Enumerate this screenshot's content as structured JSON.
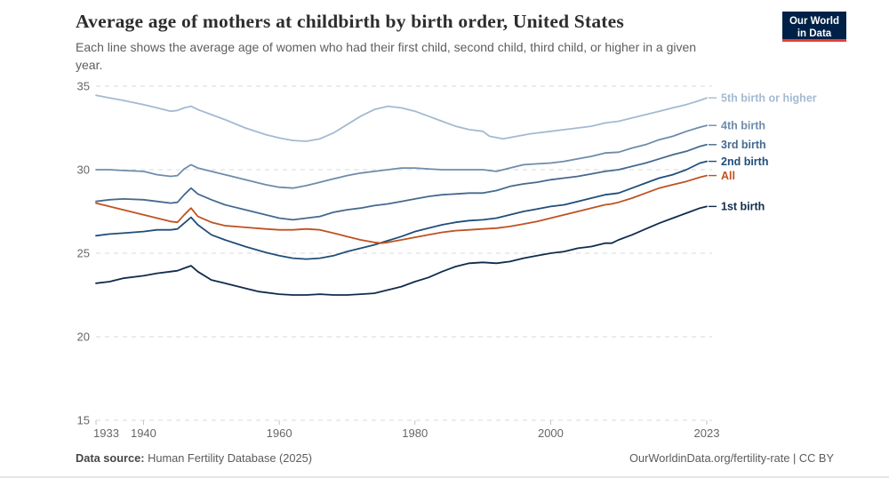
{
  "header": {
    "logo": {
      "line1": "Our World",
      "line2": "in Data",
      "bg": "#002147",
      "stripe": "#E63E36"
    }
  },
  "footer": {
    "datasource_label": "Data source:",
    "datasource": "Human Fertility Database (2025)",
    "credit": "OurWorldinData.org/fertility-rate | CC BY"
  },
  "chart_data": {
    "type": "line",
    "title": "Average age of mothers at childbirth by birth order, United States",
    "subtitle": "Each line shows the average age of women who had their first child, second child, third child, or higher in a given year.",
    "xlabel": "",
    "ylabel": "",
    "xlim": [
      1933,
      2023
    ],
    "ylim": [
      15,
      35
    ],
    "x_ticks": [
      "1933",
      "1940",
      "1960",
      "1980",
      "2000",
      "2023"
    ],
    "y_ticks": [
      15,
      20,
      25,
      30,
      35
    ],
    "grid": "horizontal-dashed",
    "legend_position": "line-end-labels-right",
    "series": [
      {
        "name": "5th birth or higher",
        "color": "#a4bad1",
        "points": [
          [
            1933,
            34.45
          ],
          [
            1935,
            34.3
          ],
          [
            1937,
            34.15
          ],
          [
            1940,
            33.9
          ],
          [
            1942,
            33.7
          ],
          [
            1944,
            33.5
          ],
          [
            1945,
            33.55
          ],
          [
            1946,
            33.7
          ],
          [
            1947,
            33.8
          ],
          [
            1948,
            33.6
          ],
          [
            1950,
            33.3
          ],
          [
            1952,
            33.0
          ],
          [
            1955,
            32.5
          ],
          [
            1958,
            32.1
          ],
          [
            1960,
            31.9
          ],
          [
            1962,
            31.75
          ],
          [
            1964,
            31.7
          ],
          [
            1966,
            31.85
          ],
          [
            1968,
            32.2
          ],
          [
            1970,
            32.7
          ],
          [
            1972,
            33.2
          ],
          [
            1974,
            33.6
          ],
          [
            1976,
            33.8
          ],
          [
            1978,
            33.7
          ],
          [
            1980,
            33.5
          ],
          [
            1982,
            33.2
          ],
          [
            1984,
            32.9
          ],
          [
            1986,
            32.6
          ],
          [
            1988,
            32.4
          ],
          [
            1990,
            32.3
          ],
          [
            1991,
            32.0
          ],
          [
            1993,
            31.85
          ],
          [
            1995,
            32.0
          ],
          [
            1997,
            32.15
          ],
          [
            2000,
            32.3
          ],
          [
            2002,
            32.4
          ],
          [
            2004,
            32.5
          ],
          [
            2006,
            32.6
          ],
          [
            2008,
            32.8
          ],
          [
            2010,
            32.9
          ],
          [
            2012,
            33.1
          ],
          [
            2014,
            33.3
          ],
          [
            2016,
            33.5
          ],
          [
            2018,
            33.7
          ],
          [
            2020,
            33.9
          ],
          [
            2022,
            34.15
          ],
          [
            2023,
            34.3
          ]
        ]
      },
      {
        "name": "4th birth",
        "color": "#6d8cab",
        "points": [
          [
            1933,
            30.0
          ],
          [
            1935,
            30.0
          ],
          [
            1937,
            29.95
          ],
          [
            1940,
            29.9
          ],
          [
            1942,
            29.7
          ],
          [
            1944,
            29.6
          ],
          [
            1945,
            29.65
          ],
          [
            1946,
            30.05
          ],
          [
            1947,
            30.3
          ],
          [
            1948,
            30.1
          ],
          [
            1950,
            29.9
          ],
          [
            1952,
            29.7
          ],
          [
            1955,
            29.4
          ],
          [
            1958,
            29.1
          ],
          [
            1960,
            28.95
          ],
          [
            1962,
            28.9
          ],
          [
            1964,
            29.05
          ],
          [
            1966,
            29.25
          ],
          [
            1968,
            29.45
          ],
          [
            1970,
            29.65
          ],
          [
            1972,
            29.8
          ],
          [
            1974,
            29.9
          ],
          [
            1976,
            30.0
          ],
          [
            1978,
            30.1
          ],
          [
            1980,
            30.1
          ],
          [
            1982,
            30.05
          ],
          [
            1984,
            30.0
          ],
          [
            1986,
            30.0
          ],
          [
            1988,
            30.0
          ],
          [
            1990,
            30.0
          ],
          [
            1992,
            29.9
          ],
          [
            1994,
            30.1
          ],
          [
            1996,
            30.3
          ],
          [
            1998,
            30.35
          ],
          [
            2000,
            30.4
          ],
          [
            2002,
            30.5
          ],
          [
            2004,
            30.65
          ],
          [
            2006,
            30.8
          ],
          [
            2008,
            31.0
          ],
          [
            2010,
            31.05
          ],
          [
            2012,
            31.3
          ],
          [
            2014,
            31.5
          ],
          [
            2016,
            31.8
          ],
          [
            2018,
            32.0
          ],
          [
            2020,
            32.3
          ],
          [
            2022,
            32.55
          ],
          [
            2023,
            32.65
          ]
        ]
      },
      {
        "name": "3rd birth",
        "color": "#45698f",
        "points": [
          [
            1933,
            28.1
          ],
          [
            1935,
            28.2
          ],
          [
            1937,
            28.25
          ],
          [
            1940,
            28.2
          ],
          [
            1942,
            28.1
          ],
          [
            1944,
            28.0
          ],
          [
            1945,
            28.05
          ],
          [
            1946,
            28.5
          ],
          [
            1947,
            28.9
          ],
          [
            1948,
            28.55
          ],
          [
            1950,
            28.2
          ],
          [
            1952,
            27.9
          ],
          [
            1955,
            27.6
          ],
          [
            1958,
            27.3
          ],
          [
            1960,
            27.1
          ],
          [
            1962,
            27.0
          ],
          [
            1964,
            27.1
          ],
          [
            1966,
            27.2
          ],
          [
            1968,
            27.45
          ],
          [
            1970,
            27.6
          ],
          [
            1972,
            27.7
          ],
          [
            1974,
            27.85
          ],
          [
            1976,
            27.95
          ],
          [
            1978,
            28.1
          ],
          [
            1980,
            28.25
          ],
          [
            1982,
            28.4
          ],
          [
            1984,
            28.5
          ],
          [
            1986,
            28.55
          ],
          [
            1988,
            28.6
          ],
          [
            1990,
            28.6
          ],
          [
            1992,
            28.75
          ],
          [
            1994,
            29.0
          ],
          [
            1996,
            29.15
          ],
          [
            1998,
            29.25
          ],
          [
            2000,
            29.4
          ],
          [
            2002,
            29.5
          ],
          [
            2004,
            29.6
          ],
          [
            2006,
            29.75
          ],
          [
            2008,
            29.9
          ],
          [
            2010,
            30.0
          ],
          [
            2012,
            30.2
          ],
          [
            2014,
            30.4
          ],
          [
            2016,
            30.65
          ],
          [
            2018,
            30.9
          ],
          [
            2020,
            31.1
          ],
          [
            2022,
            31.4
          ],
          [
            2023,
            31.5
          ]
        ]
      },
      {
        "name": "2nd birth",
        "color": "#1f4e79",
        "points": [
          [
            1933,
            26.05
          ],
          [
            1935,
            26.15
          ],
          [
            1937,
            26.2
          ],
          [
            1940,
            26.3
          ],
          [
            1942,
            26.4
          ],
          [
            1944,
            26.4
          ],
          [
            1945,
            26.45
          ],
          [
            1946,
            26.8
          ],
          [
            1947,
            27.15
          ],
          [
            1948,
            26.7
          ],
          [
            1950,
            26.1
          ],
          [
            1952,
            25.8
          ],
          [
            1955,
            25.4
          ],
          [
            1958,
            25.05
          ],
          [
            1960,
            24.85
          ],
          [
            1962,
            24.7
          ],
          [
            1964,
            24.65
          ],
          [
            1966,
            24.7
          ],
          [
            1968,
            24.85
          ],
          [
            1970,
            25.1
          ],
          [
            1972,
            25.3
          ],
          [
            1974,
            25.5
          ],
          [
            1976,
            25.75
          ],
          [
            1978,
            26.0
          ],
          [
            1980,
            26.3
          ],
          [
            1982,
            26.5
          ],
          [
            1984,
            26.7
          ],
          [
            1986,
            26.85
          ],
          [
            1988,
            26.95
          ],
          [
            1990,
            27.0
          ],
          [
            1992,
            27.1
          ],
          [
            1994,
            27.3
          ],
          [
            1996,
            27.5
          ],
          [
            1998,
            27.65
          ],
          [
            2000,
            27.8
          ],
          [
            2002,
            27.9
          ],
          [
            2004,
            28.1
          ],
          [
            2006,
            28.3
          ],
          [
            2008,
            28.5
          ],
          [
            2009,
            28.55
          ],
          [
            2010,
            28.6
          ],
          [
            2012,
            28.9
          ],
          [
            2014,
            29.2
          ],
          [
            2016,
            29.5
          ],
          [
            2018,
            29.7
          ],
          [
            2020,
            30.0
          ],
          [
            2022,
            30.4
          ],
          [
            2023,
            30.5
          ]
        ]
      },
      {
        "name": "All",
        "color": "#bf5221",
        "points": [
          [
            1933,
            28.0
          ],
          [
            1935,
            27.8
          ],
          [
            1937,
            27.6
          ],
          [
            1940,
            27.3
          ],
          [
            1942,
            27.1
          ],
          [
            1944,
            26.9
          ],
          [
            1945,
            26.85
          ],
          [
            1946,
            27.3
          ],
          [
            1947,
            27.7
          ],
          [
            1948,
            27.2
          ],
          [
            1950,
            26.85
          ],
          [
            1952,
            26.65
          ],
          [
            1955,
            26.55
          ],
          [
            1958,
            26.45
          ],
          [
            1960,
            26.4
          ],
          [
            1962,
            26.4
          ],
          [
            1964,
            26.45
          ],
          [
            1966,
            26.4
          ],
          [
            1968,
            26.2
          ],
          [
            1970,
            26.0
          ],
          [
            1972,
            25.8
          ],
          [
            1974,
            25.65
          ],
          [
            1975,
            25.6
          ],
          [
            1976,
            25.65
          ],
          [
            1978,
            25.8
          ],
          [
            1980,
            25.95
          ],
          [
            1982,
            26.1
          ],
          [
            1984,
            26.25
          ],
          [
            1986,
            26.35
          ],
          [
            1988,
            26.4
          ],
          [
            1990,
            26.45
          ],
          [
            1992,
            26.5
          ],
          [
            1994,
            26.6
          ],
          [
            1996,
            26.75
          ],
          [
            1998,
            26.9
          ],
          [
            2000,
            27.1
          ],
          [
            2002,
            27.3
          ],
          [
            2004,
            27.5
          ],
          [
            2006,
            27.7
          ],
          [
            2008,
            27.9
          ],
          [
            2009,
            27.95
          ],
          [
            2010,
            28.05
          ],
          [
            2012,
            28.3
          ],
          [
            2014,
            28.6
          ],
          [
            2016,
            28.9
          ],
          [
            2018,
            29.1
          ],
          [
            2020,
            29.3
          ],
          [
            2022,
            29.55
          ],
          [
            2023,
            29.65
          ]
        ]
      },
      {
        "name": "1st birth",
        "color": "#102b4d",
        "points": [
          [
            1933,
            23.2
          ],
          [
            1935,
            23.3
          ],
          [
            1937,
            23.5
          ],
          [
            1940,
            23.65
          ],
          [
            1942,
            23.8
          ],
          [
            1944,
            23.9
          ],
          [
            1945,
            23.95
          ],
          [
            1946,
            24.1
          ],
          [
            1947,
            24.25
          ],
          [
            1948,
            23.9
          ],
          [
            1950,
            23.4
          ],
          [
            1952,
            23.2
          ],
          [
            1955,
            22.9
          ],
          [
            1957,
            22.7
          ],
          [
            1960,
            22.55
          ],
          [
            1962,
            22.5
          ],
          [
            1964,
            22.5
          ],
          [
            1966,
            22.55
          ],
          [
            1968,
            22.5
          ],
          [
            1970,
            22.5
          ],
          [
            1972,
            22.55
          ],
          [
            1974,
            22.6
          ],
          [
            1976,
            22.8
          ],
          [
            1978,
            23.0
          ],
          [
            1980,
            23.3
          ],
          [
            1982,
            23.55
          ],
          [
            1984,
            23.9
          ],
          [
            1986,
            24.2
          ],
          [
            1988,
            24.4
          ],
          [
            1990,
            24.45
          ],
          [
            1992,
            24.4
          ],
          [
            1994,
            24.5
          ],
          [
            1996,
            24.7
          ],
          [
            1998,
            24.85
          ],
          [
            2000,
            25.0
          ],
          [
            2002,
            25.1
          ],
          [
            2004,
            25.3
          ],
          [
            2006,
            25.4
          ],
          [
            2008,
            25.6
          ],
          [
            2009,
            25.6
          ],
          [
            2010,
            25.8
          ],
          [
            2012,
            26.1
          ],
          [
            2014,
            26.45
          ],
          [
            2016,
            26.8
          ],
          [
            2018,
            27.1
          ],
          [
            2020,
            27.4
          ],
          [
            2022,
            27.7
          ],
          [
            2023,
            27.8
          ]
        ]
      }
    ]
  }
}
